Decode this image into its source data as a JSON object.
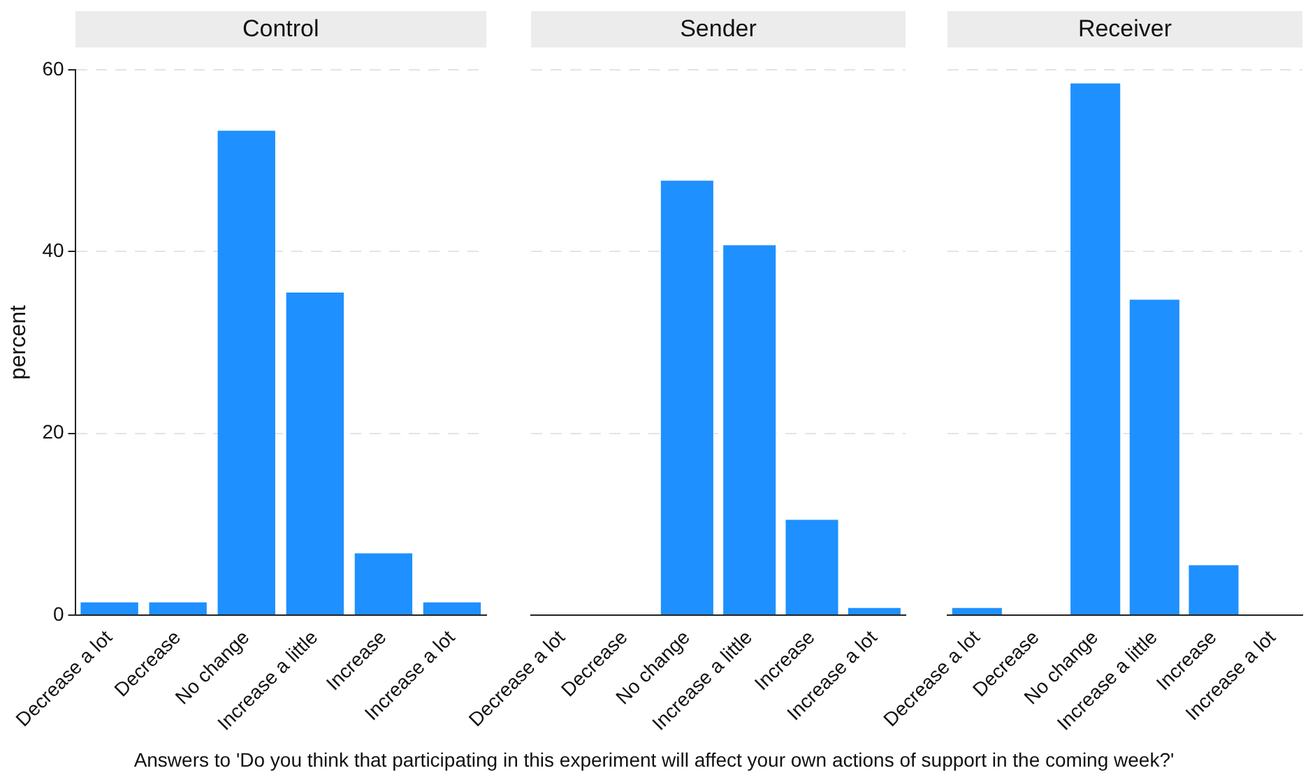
{
  "chart_data": [
    {
      "type": "bar",
      "title": "Control",
      "ylabel": "percent",
      "categories": [
        "Decrease a lot",
        "Decrease",
        "No change",
        "Increase a little",
        "Increase",
        "Increase a lot"
      ],
      "values": [
        1.4,
        1.4,
        53.3,
        35.5,
        6.8,
        1.4
      ],
      "color": "#1e90ff",
      "ylim": [
        0,
        60
      ],
      "yticks": [
        0,
        20,
        40,
        60
      ],
      "grid": "y",
      "annotations": [
        "Answers to 'Do you think that participating in this experiment will affect your own actions of support in the coming week?'"
      ]
    },
    {
      "type": "bar",
      "title": "Sender",
      "categories": [
        "Decrease a lot",
        "Decrease",
        "No change",
        "Increase a little",
        "Increase",
        "Increase a lot"
      ],
      "values": [
        0,
        0,
        47.8,
        40.7,
        10.5,
        0.8
      ],
      "color": "#1e90ff",
      "ylim": [
        0,
        60
      ],
      "yticks": [
        0,
        20,
        40,
        60
      ],
      "grid": "y",
      "tick_labels": "x"
    },
    {
      "type": "bar",
      "title": "Receiver",
      "categories": [
        "Decrease a lot",
        "Decrease",
        "No change",
        "Increase a little",
        "Increase",
        "Increase a lot"
      ],
      "values": [
        0.8,
        0,
        58.5,
        34.7,
        5.5,
        0
      ],
      "color": "#1e90ff",
      "ylim": [
        0,
        60
      ],
      "yticks": [
        0,
        20,
        40,
        60
      ],
      "grid": "y",
      "tick_labels": "x"
    }
  ]
}
